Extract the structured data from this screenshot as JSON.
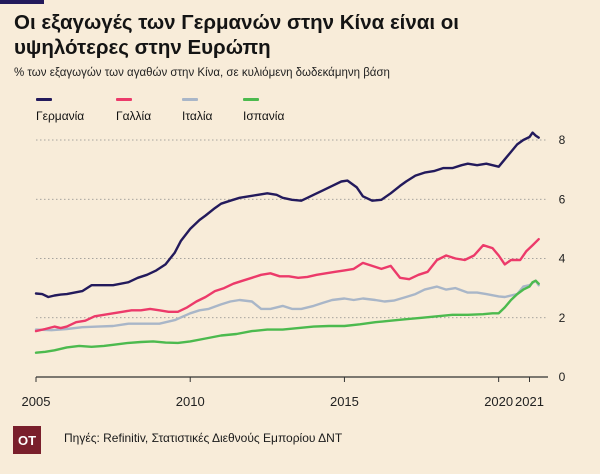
{
  "header": {
    "title": "Οι εξαγωγές των Γερμανών στην Κίνα είναι οι υψηλότερες στην Ευρώπη",
    "subtitle": "% των εξαγωγών των αγαθών στην Κίνα, σε κυλιόμενη δωδεκάμηνη βάση"
  },
  "footer": {
    "logo_text": "ΟΤ",
    "source": "Πηγές: Refinitiv, Στατιστικές Διεθνούς Εμπορίου ΔΝΤ"
  },
  "colors": {
    "background": "#f8ecd9",
    "germany": "#231a5c",
    "france": "#ec3a6a",
    "italy": "#a9b6c8",
    "spain": "#4cba4e",
    "grid": "#8a8a8a",
    "logo": "#7a1f2c"
  },
  "chart_data": {
    "type": "line",
    "title": "Οι εξαγωγές των Γερμανών στην Κίνα είναι οι υψηλότερες στην Ευρώπη",
    "subtitle": "% των εξαγωγών των αγαθών στην Κίνα, σε κυλιόμενη δωδεκάμηνη βάση",
    "xlabel": "",
    "ylabel": "",
    "xlim": [
      2005,
      2021.6
    ],
    "ylim": [
      0,
      8
    ],
    "x_ticks": [
      2005,
      2010,
      2015,
      2020,
      2021
    ],
    "x_tick_labels": [
      "2005",
      "2010",
      "2015",
      "2020",
      "2021"
    ],
    "y_ticks": [
      0,
      2,
      4,
      6,
      8
    ],
    "y_tick_labels": [
      "0",
      "2",
      "4",
      "6",
      "8"
    ],
    "y_axis_position": "right",
    "grid": "horizontal",
    "legend_position": "top-left",
    "series": [
      {
        "name": "Γερμανία",
        "color": "#231a5c",
        "x": [
          2005.0,
          2005.2,
          2005.4,
          2005.6,
          2005.8,
          2006.0,
          2006.5,
          2006.8,
          2007.0,
          2007.5,
          2008.0,
          2008.3,
          2008.6,
          2008.9,
          2009.2,
          2009.5,
          2009.7,
          2010.0,
          2010.3,
          2010.5,
          2010.8,
          2011.0,
          2011.3,
          2011.6,
          2011.9,
          2012.2,
          2012.5,
          2012.8,
          2013.0,
          2013.3,
          2013.6,
          2013.8,
          2014.0,
          2014.3,
          2014.6,
          2014.9,
          2015.1,
          2015.4,
          2015.6,
          2015.9,
          2016.2,
          2016.5,
          2016.8,
          2017.0,
          2017.3,
          2017.6,
          2017.9,
          2018.2,
          2018.5,
          2018.8,
          2019.0,
          2019.3,
          2019.6,
          2019.8,
          2020.0,
          2020.2,
          2020.4,
          2020.6,
          2020.8,
          2021.0,
          2021.1,
          2021.2,
          2021.3
        ],
        "values": [
          2.82,
          2.8,
          2.7,
          2.75,
          2.78,
          2.8,
          2.9,
          3.1,
          3.1,
          3.1,
          3.2,
          3.35,
          3.45,
          3.6,
          3.8,
          4.2,
          4.6,
          5.0,
          5.3,
          5.45,
          5.7,
          5.85,
          5.95,
          6.05,
          6.1,
          6.15,
          6.2,
          6.15,
          6.05,
          5.98,
          5.95,
          6.05,
          6.15,
          6.3,
          6.45,
          6.6,
          6.63,
          6.4,
          6.1,
          5.95,
          5.98,
          6.2,
          6.45,
          6.6,
          6.8,
          6.9,
          6.95,
          7.05,
          7.05,
          7.15,
          7.2,
          7.15,
          7.2,
          7.15,
          7.1,
          7.35,
          7.6,
          7.85,
          8.0,
          8.1,
          8.25,
          8.15,
          8.08
        ]
      },
      {
        "name": "Γαλλία",
        "color": "#ec3a6a",
        "x": [
          2005.0,
          2005.3,
          2005.6,
          2005.8,
          2006.0,
          2006.3,
          2006.6,
          2006.9,
          2007.2,
          2007.5,
          2007.8,
          2008.1,
          2008.4,
          2008.7,
          2009.0,
          2009.3,
          2009.6,
          2009.9,
          2010.2,
          2010.5,
          2010.8,
          2011.1,
          2011.4,
          2011.7,
          2012.0,
          2012.3,
          2012.6,
          2012.9,
          2013.2,
          2013.5,
          2013.8,
          2014.1,
          2014.4,
          2014.7,
          2015.0,
          2015.3,
          2015.6,
          2015.9,
          2016.2,
          2016.5,
          2016.8,
          2017.1,
          2017.4,
          2017.7,
          2018.0,
          2018.3,
          2018.6,
          2018.9,
          2019.2,
          2019.5,
          2019.8,
          2020.0,
          2020.2,
          2020.4,
          2020.7,
          2020.9,
          2021.1,
          2021.3
        ],
        "values": [
          1.55,
          1.62,
          1.7,
          1.65,
          1.7,
          1.85,
          1.9,
          2.05,
          2.1,
          2.15,
          2.2,
          2.25,
          2.25,
          2.3,
          2.25,
          2.2,
          2.2,
          2.35,
          2.55,
          2.7,
          2.9,
          3.0,
          3.15,
          3.25,
          3.35,
          3.45,
          3.5,
          3.4,
          3.4,
          3.35,
          3.38,
          3.45,
          3.5,
          3.55,
          3.6,
          3.65,
          3.85,
          3.75,
          3.65,
          3.75,
          3.35,
          3.3,
          3.45,
          3.55,
          3.95,
          4.1,
          4.0,
          3.95,
          4.1,
          4.45,
          4.35,
          4.1,
          3.8,
          3.95,
          3.95,
          4.25,
          4.45,
          4.65
        ]
      },
      {
        "name": "Ιταλία",
        "color": "#a9b6c8",
        "x": [
          2005.0,
          2005.5,
          2006.0,
          2006.5,
          2007.0,
          2007.5,
          2008.0,
          2008.5,
          2009.0,
          2009.5,
          2010.0,
          2010.3,
          2010.6,
          2011.0,
          2011.3,
          2011.6,
          2012.0,
          2012.3,
          2012.6,
          2013.0,
          2013.3,
          2013.6,
          2014.0,
          2014.3,
          2014.6,
          2015.0,
          2015.3,
          2015.6,
          2016.0,
          2016.3,
          2016.6,
          2017.0,
          2017.3,
          2017.6,
          2018.0,
          2018.3,
          2018.6,
          2019.0,
          2019.3,
          2019.6,
          2020.0,
          2020.2,
          2020.4,
          2020.6,
          2020.8,
          2021.0,
          2021.2,
          2021.3
        ],
        "values": [
          1.6,
          1.58,
          1.62,
          1.68,
          1.7,
          1.72,
          1.8,
          1.8,
          1.8,
          1.92,
          2.15,
          2.25,
          2.3,
          2.45,
          2.55,
          2.6,
          2.55,
          2.3,
          2.3,
          2.4,
          2.3,
          2.3,
          2.4,
          2.5,
          2.6,
          2.65,
          2.6,
          2.65,
          2.6,
          2.55,
          2.58,
          2.7,
          2.8,
          2.95,
          3.05,
          2.95,
          3.0,
          2.85,
          2.85,
          2.8,
          2.72,
          2.7,
          2.75,
          2.8,
          3.05,
          3.1,
          3.25,
          3.1
        ]
      },
      {
        "name": "Ισπανία",
        "color": "#4cba4e",
        "x": [
          2005.0,
          2005.3,
          2005.6,
          2006.0,
          2006.4,
          2006.8,
          2007.2,
          2007.6,
          2008.0,
          2008.4,
          2008.8,
          2009.2,
          2009.6,
          2010.0,
          2010.5,
          2011.0,
          2011.5,
          2012.0,
          2012.5,
          2013.0,
          2013.5,
          2014.0,
          2014.5,
          2015.0,
          2015.5,
          2016.0,
          2016.5,
          2017.0,
          2017.5,
          2018.0,
          2018.5,
          2019.0,
          2019.5,
          2019.8,
          2020.0,
          2020.2,
          2020.4,
          2020.6,
          2020.8,
          2021.0,
          2021.1,
          2021.2,
          2021.3
        ],
        "values": [
          0.82,
          0.85,
          0.9,
          1.0,
          1.05,
          1.02,
          1.05,
          1.1,
          1.15,
          1.18,
          1.2,
          1.16,
          1.15,
          1.2,
          1.3,
          1.4,
          1.45,
          1.55,
          1.6,
          1.6,
          1.65,
          1.7,
          1.72,
          1.72,
          1.78,
          1.85,
          1.9,
          1.95,
          2.0,
          2.05,
          2.1,
          2.1,
          2.12,
          2.15,
          2.15,
          2.35,
          2.6,
          2.8,
          2.95,
          3.05,
          3.2,
          3.25,
          3.15
        ]
      }
    ]
  }
}
